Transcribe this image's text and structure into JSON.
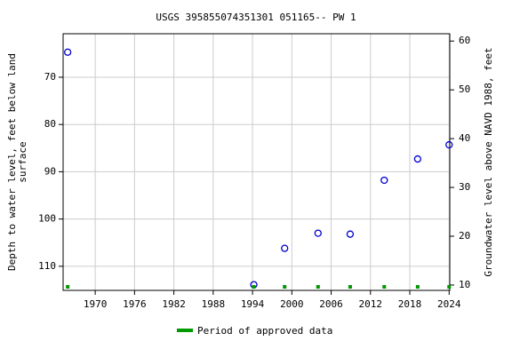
{
  "chart_data": {
    "type": "scatter",
    "title": "USGS 395855074351301 051165-- PW 1",
    "ylabel_lines": [
      "Depth to water level, feet below land",
      "surface"
    ],
    "y2label": "Groundwater level above NAVD 1988, feet",
    "xlim": [
      1965.1,
      2024.1
    ],
    "xticks": [
      1970,
      1976,
      1982,
      1988,
      1994,
      2000,
      2006,
      2012,
      2018,
      2024
    ],
    "ylim": [
      60.8,
      115.1
    ],
    "yticks": [
      70,
      80,
      90,
      100,
      110
    ],
    "y_inverted": true,
    "y2lim": [
      8.9,
      61.5
    ],
    "y2ticks": [
      10,
      20,
      30,
      40,
      50,
      60
    ],
    "grid": true,
    "series": [
      {
        "name": "Depth to water",
        "color": "#0000cc",
        "x": [
          1965.8,
          1994.2,
          1998.9,
          2004.0,
          2008.9,
          2014.1,
          2019.2,
          2024.0
        ],
        "values": [
          64.7,
          113.9,
          106.2,
          103.0,
          103.2,
          91.8,
          87.3,
          84.3
        ]
      }
    ],
    "approved": {
      "name": "Period of approved data",
      "color": "#009900",
      "x": [
        1965.8,
        1994.2,
        1998.9,
        2004.0,
        2008.9,
        2014.1,
        2019.2,
        2024.0
      ]
    }
  }
}
